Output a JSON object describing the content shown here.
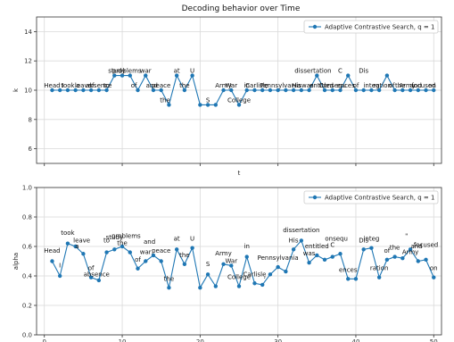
{
  "chart_data": [
    {
      "type": "line",
      "title": "Decoding behavior over Time",
      "xlabel": "t",
      "ylabel": "k",
      "ylim": [
        5,
        15
      ],
      "xlim": [
        -1,
        51
      ],
      "yticks": [
        6,
        8,
        10,
        12,
        14
      ],
      "xticks": [
        0,
        10,
        20,
        30,
        40,
        50
      ],
      "xticklabels": [
        "",
        "",
        "",
        "",
        "",
        ""
      ],
      "grid": true,
      "legend_position": "top-right",
      "series": [
        {
          "name": "Adaptive Contrastive Search, q = 1",
          "color": "#1f77b4",
          "x": [
            1,
            2,
            3,
            4,
            5,
            6,
            7,
            8,
            9,
            10,
            11,
            12,
            13,
            14,
            15,
            16,
            17,
            18,
            19,
            20,
            21,
            22,
            23,
            24,
            25,
            26,
            27,
            28,
            29,
            30,
            31,
            32,
            33,
            34,
            35,
            36,
            37,
            38,
            39,
            40,
            41,
            42,
            43,
            44,
            45,
            46,
            47,
            48,
            49,
            50
          ],
          "values": [
            10,
            10,
            10,
            10,
            10,
            10,
            10,
            10,
            11,
            11,
            11,
            10,
            11,
            10,
            10,
            9,
            11,
            10,
            11,
            9,
            9,
            9,
            10,
            10,
            9,
            10,
            10,
            10,
            10,
            10,
            10,
            10,
            10,
            10,
            11,
            10,
            10,
            10,
            11,
            10,
            10,
            10,
            10,
            11,
            10,
            10,
            10,
            10,
            10,
            10
          ]
        }
      ],
      "point_labels": [
        {
          "x": 1,
          "y": 10,
          "text": "Head"
        },
        {
          "x": 2.4,
          "y": 10,
          "text": "I"
        },
        {
          "x": 3,
          "y": 10,
          "text": "took"
        },
        {
          "x": 4.3,
          "y": 10,
          "text": "a"
        },
        {
          "x": 5,
          "y": 10,
          "text": "leave"
        },
        {
          "x": 6,
          "y": 10,
          "text": "of"
        },
        {
          "x": 7,
          "y": 10,
          "text": "absence"
        },
        {
          "x": 8,
          "y": 10,
          "text": "to"
        },
        {
          "x": 9.3,
          "y": 11,
          "text": "study"
        },
        {
          "x": 10.6,
          "y": 11,
          "text": "problems"
        },
        {
          "x": 11.5,
          "y": 10,
          "text": "of"
        },
        {
          "x": 13,
          "y": 11,
          "text": "war"
        },
        {
          "x": 13.8,
          "y": 10,
          "text": "and"
        },
        {
          "x": 15,
          "y": 10,
          "text": "peace"
        },
        {
          "x": 15.5,
          "y": 9,
          "text": "the"
        },
        {
          "x": 17,
          "y": 11,
          "text": "at"
        },
        {
          "x": 18,
          "y": 10,
          "text": "the"
        },
        {
          "x": 19,
          "y": 11,
          "text": "U"
        },
        {
          "x": 21,
          "y": 9,
          "text": "S"
        },
        {
          "x": 23,
          "y": 10,
          "text": "Army"
        },
        {
          "x": 24,
          "y": 10,
          "text": "War"
        },
        {
          "x": 25,
          "y": 9,
          "text": "College"
        },
        {
          "x": 26,
          "y": 10,
          "text": "in"
        },
        {
          "x": 27.3,
          "y": 10,
          "text": "Carlisle"
        },
        {
          "x": 28.5,
          "y": 10,
          "text": ","
        },
        {
          "x": 30.3,
          "y": 10,
          "text": "Pennsylvania"
        },
        {
          "x": 32.4,
          "y": 10,
          "text": "His"
        },
        {
          "x": 34.5,
          "y": 11,
          "text": "dissertation"
        },
        {
          "x": 33.8,
          "y": 10,
          "text": "was"
        },
        {
          "x": 35.6,
          "y": 10,
          "text": "entitled"
        },
        {
          "x": 37,
          "y": 10,
          "text": "Consequ"
        },
        {
          "x": 38,
          "y": 11,
          "text": "C"
        },
        {
          "x": 38.7,
          "y": 10,
          "text": "ences"
        },
        {
          "x": 40,
          "y": 10,
          "text": "of"
        },
        {
          "x": 41,
          "y": 11,
          "text": "Dis"
        },
        {
          "x": 42,
          "y": 10,
          "text": "integ"
        },
        {
          "x": 43.4,
          "y": 10,
          "text": "ration"
        },
        {
          "x": 44.6,
          "y": 10,
          "text": "of"
        },
        {
          "x": 45.7,
          "y": 10,
          "text": "the"
        },
        {
          "x": 46.6,
          "y": 10,
          "text": "Army"
        },
        {
          "x": 47.7,
          "y": 10,
          "text": "and"
        },
        {
          "x": 48.7,
          "y": 10,
          "text": "focused"
        },
        {
          "x": 49.8,
          "y": 10,
          "text": "on"
        }
      ]
    },
    {
      "type": "line",
      "title": "",
      "xlabel": "",
      "ylabel": "alpha",
      "ylim": [
        0.0,
        1.0
      ],
      "xlim": [
        -1,
        51
      ],
      "yticks": [
        0.0,
        0.2,
        0.4,
        0.6,
        0.8,
        1.0
      ],
      "yticklabels": [
        "0.0",
        "0.2",
        "0.4",
        "0.6",
        "0.8",
        "1.0"
      ],
      "xticks": [
        0,
        10,
        20,
        30,
        40,
        50
      ],
      "xticklabels": [
        "0",
        "10",
        "20",
        "30",
        "40",
        "50"
      ],
      "grid": true,
      "legend_position": "top-right",
      "series": [
        {
          "name": "Adaptive Contrastive Search, q = 1",
          "color": "#1f77b4",
          "x": [
            1,
            2,
            3,
            4,
            5,
            6,
            7,
            8,
            9,
            10,
            11,
            12,
            13,
            14,
            15,
            16,
            17,
            18,
            19,
            20,
            21,
            22,
            23,
            24,
            25,
            26,
            27,
            28,
            29,
            30,
            31,
            32,
            33,
            34,
            35,
            36,
            37,
            38,
            39,
            40,
            41,
            42,
            43,
            44,
            45,
            46,
            47,
            48,
            49,
            50
          ],
          "values": [
            0.5,
            0.4,
            0.62,
            0.6,
            0.55,
            0.39,
            0.37,
            0.56,
            0.58,
            0.6,
            0.56,
            0.45,
            0.5,
            0.54,
            0.5,
            0.32,
            0.58,
            0.48,
            0.59,
            0.32,
            0.41,
            0.33,
            0.48,
            0.47,
            0.33,
            0.53,
            0.35,
            0.34,
            0.41,
            0.46,
            0.43,
            0.58,
            0.64,
            0.49,
            0.54,
            0.51,
            0.53,
            0.55,
            0.38,
            0.38,
            0.58,
            0.59,
            0.39,
            0.51,
            0.53,
            0.52,
            0.58,
            0.5,
            0.51,
            0.39
          ]
        }
      ],
      "point_labels": [
        {
          "x": 1,
          "y": 0.54,
          "text": "Head"
        },
        {
          "x": 2,
          "y": 0.44,
          "text": "I"
        },
        {
          "x": 3,
          "y": 0.66,
          "text": "took"
        },
        {
          "x": 4.8,
          "y": 0.61,
          "text": "leave"
        },
        {
          "x": 4.2,
          "y": 0.57,
          "text": "a"
        },
        {
          "x": 6,
          "y": 0.42,
          "text": "of"
        },
        {
          "x": 6.7,
          "y": 0.38,
          "text": "absence"
        },
        {
          "x": 8,
          "y": 0.61,
          "text": "to"
        },
        {
          "x": 9,
          "y": 0.63,
          "text": "study"
        },
        {
          "x": 10.5,
          "y": 0.64,
          "text": "problems"
        },
        {
          "x": 10,
          "y": 0.59,
          "text": "the"
        },
        {
          "x": 12,
          "y": 0.48,
          "text": "of"
        },
        {
          "x": 13.5,
          "y": 0.6,
          "text": "and"
        },
        {
          "x": 13,
          "y": 0.53,
          "text": "war"
        },
        {
          "x": 15,
          "y": 0.54,
          "text": "peace"
        },
        {
          "x": 16,
          "y": 0.35,
          "text": "the"
        },
        {
          "x": 17,
          "y": 0.62,
          "text": "at"
        },
        {
          "x": 18,
          "y": 0.51,
          "text": "the"
        },
        {
          "x": 19,
          "y": 0.62,
          "text": "U"
        },
        {
          "x": 21,
          "y": 0.45,
          "text": "S"
        },
        {
          "x": 23,
          "y": 0.52,
          "text": "Army"
        },
        {
          "x": 24,
          "y": 0.47,
          "text": "War"
        },
        {
          "x": 25,
          "y": 0.36,
          "text": "College"
        },
        {
          "x": 26,
          "y": 0.57,
          "text": "in"
        },
        {
          "x": 27,
          "y": 0.38,
          "text": "Carlisle"
        },
        {
          "x": 28.3,
          "y": 0.37,
          "text": ","
        },
        {
          "x": 30,
          "y": 0.49,
          "text": "Pennsylvania"
        },
        {
          "x": 32,
          "y": 0.61,
          "text": "His"
        },
        {
          "x": 33,
          "y": 0.68,
          "text": "dissertation"
        },
        {
          "x": 34,
          "y": 0.52,
          "text": "was"
        },
        {
          "x": 35,
          "y": 0.57,
          "text": "entitled"
        },
        {
          "x": 37,
          "y": 0.58,
          "text": "C"
        },
        {
          "x": 37.5,
          "y": 0.62,
          "text": "onsequ"
        },
        {
          "x": 39,
          "y": 0.41,
          "text": "ences"
        },
        {
          "x": 41,
          "y": 0.61,
          "text": "Dis"
        },
        {
          "x": 42,
          "y": 0.62,
          "text": "integ"
        },
        {
          "x": 43,
          "y": 0.42,
          "text": "ration"
        },
        {
          "x": 44,
          "y": 0.54,
          "text": "of"
        },
        {
          "x": 45,
          "y": 0.56,
          "text": "the"
        },
        {
          "x": 46.5,
          "y": 0.64,
          "text": "\""
        },
        {
          "x": 47,
          "y": 0.53,
          "text": "Army"
        },
        {
          "x": 47.8,
          "y": 0.57,
          "text": "and"
        },
        {
          "x": 49,
          "y": 0.58,
          "text": "focused"
        },
        {
          "x": 50,
          "y": 0.42,
          "text": "on"
        }
      ]
    }
  ]
}
